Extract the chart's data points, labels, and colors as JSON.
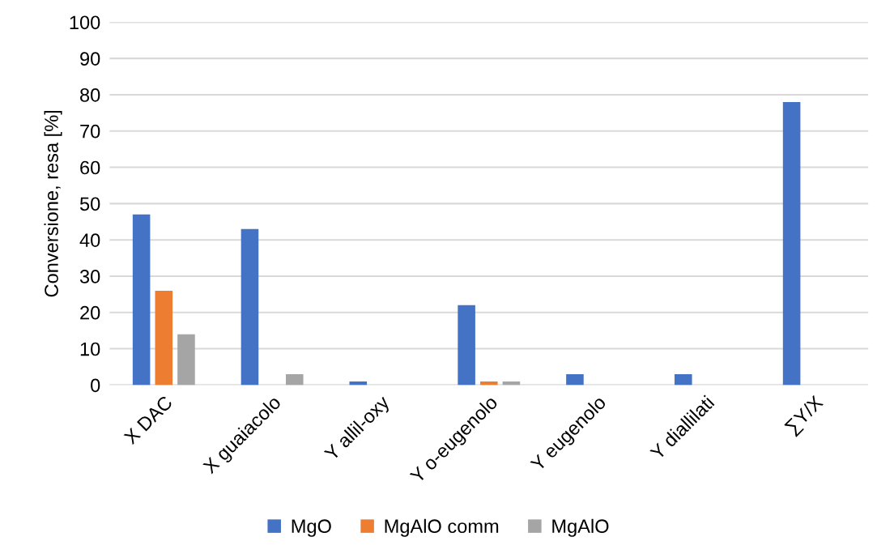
{
  "chart_data": {
    "type": "bar",
    "ylabel": "Conversione, resa [%]",
    "categories": [
      "X DAC",
      "X guaiacolo",
      "Y allil-oxy",
      "Y o-eugenolo",
      "Y eugenolo",
      "Y diallilati",
      "∑Y/X"
    ],
    "series": [
      {
        "name": "MgO",
        "color": "#4472c4",
        "values": [
          47,
          43,
          1,
          22,
          3,
          3,
          78
        ]
      },
      {
        "name": "MgAlO comm",
        "color": "#ed7d31",
        "values": [
          26,
          null,
          null,
          1,
          null,
          null,
          null
        ]
      },
      {
        "name": "MgAlO",
        "color": "#a5a5a5",
        "values": [
          14,
          3,
          null,
          1,
          null,
          null,
          null
        ]
      }
    ],
    "ylim": [
      0,
      100
    ],
    "yticks": [
      0,
      10,
      20,
      30,
      40,
      50,
      60,
      70,
      80,
      90,
      100
    ],
    "grid": "y",
    "legend": "bottom"
  }
}
